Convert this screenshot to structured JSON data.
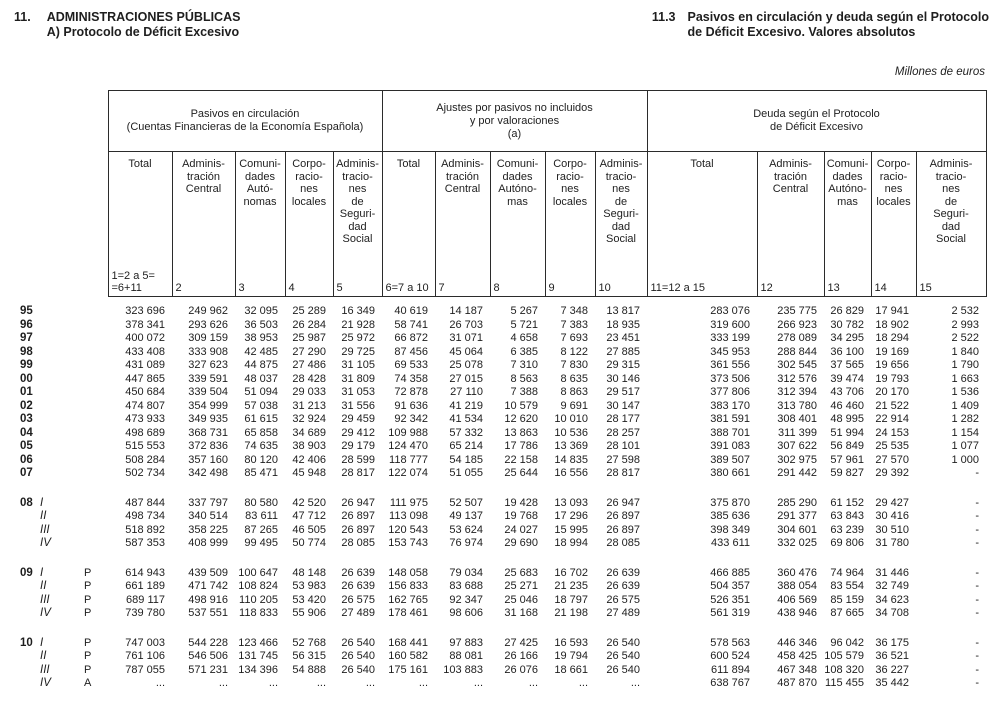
{
  "header": {
    "section_number": "11.",
    "section_title": "ADMINISTRACIONES PÚBLICAS",
    "section_subtitle": "A) Protocolo de Déficit Excesivo",
    "table_number": "11.3",
    "table_title": "Pasivos en circulación y deuda según el Protocolo\nde Déficit Excesivo. Valores absolutos",
    "units_note": "Millones de euros"
  },
  "table": {
    "groups": [
      {
        "title": "Pasivos en circulación\n(Cuentas Financieras de la Economía Española)"
      },
      {
        "title": "Ajustes por pasivos no incluidos\ny por valoraciones\n(a)"
      },
      {
        "title": "Deuda según el Protocolo\nde Déficit Excesivo"
      }
    ],
    "columns": [
      {
        "label": "Total",
        "number": "1=2 a 5=\n=6+11"
      },
      {
        "label": "Adminis-\ntración\nCentral",
        "number": "2"
      },
      {
        "label": "Comuni-\ndades\nAutó-\nnomas",
        "number": "3"
      },
      {
        "label": "Corpo-\nracio-\nnes\nlocales",
        "number": "4"
      },
      {
        "label": "Adminis-\ntracio-\nnes\nde\nSeguri-\ndad\nSocial",
        "number": "5"
      },
      {
        "label": "Total",
        "number": "6=7 a 10"
      },
      {
        "label": "Adminis-\ntración\nCentral",
        "number": "7"
      },
      {
        "label": "Comuni-\ndades\nAutóno-\nmas",
        "number": "8"
      },
      {
        "label": "Corpo-\nracio-\nnes\nlocales",
        "number": "9"
      },
      {
        "label": "Adminis-\ntracio-\nnes\nde\nSeguri-\ndad\nSocial",
        "number": "10"
      },
      {
        "label": "Total",
        "number": "11=12 a 15"
      },
      {
        "label": "Adminis-\ntración\nCentral",
        "number": "12"
      },
      {
        "label": "Comuni-\ndades\nAutóno-\nmas",
        "number": "13"
      },
      {
        "label": "Corpo-\nracio-\nnes\nlocales",
        "number": "14"
      },
      {
        "label": "Adminis-\ntracio-\nnes\nde\nSeguri-\ndad\nSocial",
        "number": "15"
      }
    ],
    "rows": [
      {
        "year": "95",
        "quarter": "",
        "marker": "",
        "gap": false,
        "values": [
          "323 696",
          "249 962",
          "32 095",
          "25 289",
          "16 349",
          "40 619",
          "14 187",
          "5 267",
          "7 348",
          "13 817",
          "283 076",
          "235 775",
          "26 829",
          "17 941",
          "2 532"
        ]
      },
      {
        "year": "96",
        "quarter": "",
        "marker": "",
        "gap": false,
        "values": [
          "378 341",
          "293 626",
          "36 503",
          "26 284",
          "21 928",
          "58 741",
          "26 703",
          "5 721",
          "7 383",
          "18 935",
          "319 600",
          "266 923",
          "30 782",
          "18 902",
          "2 993"
        ]
      },
      {
        "year": "97",
        "quarter": "",
        "marker": "",
        "gap": false,
        "values": [
          "400 072",
          "309 159",
          "38 953",
          "25 987",
          "25 972",
          "66 872",
          "31 071",
          "4 658",
          "7 693",
          "23 451",
          "333 199",
          "278 089",
          "34 295",
          "18 294",
          "2 522"
        ]
      },
      {
        "year": "98",
        "quarter": "",
        "marker": "",
        "gap": false,
        "values": [
          "433 408",
          "333 908",
          "42 485",
          "27 290",
          "29 725",
          "87 456",
          "45 064",
          "6 385",
          "8 122",
          "27 885",
          "345 953",
          "288 844",
          "36 100",
          "19 169",
          "1 840"
        ]
      },
      {
        "year": "99",
        "quarter": "",
        "marker": "",
        "gap": false,
        "values": [
          "431 089",
          "327 623",
          "44 875",
          "27 486",
          "31 105",
          "69 533",
          "25 078",
          "7 310",
          "7 830",
          "29 315",
          "361 556",
          "302 545",
          "37 565",
          "19 656",
          "1 790"
        ]
      },
      {
        "year": "00",
        "quarter": "",
        "marker": "",
        "gap": false,
        "values": [
          "447 865",
          "339 591",
          "48 037",
          "28 428",
          "31 809",
          "74 358",
          "27 015",
          "8 563",
          "8 635",
          "30 146",
          "373 506",
          "312 576",
          "39 474",
          "19 793",
          "1 663"
        ]
      },
      {
        "year": "01",
        "quarter": "",
        "marker": "",
        "gap": false,
        "values": [
          "450 684",
          "339 504",
          "51 094",
          "29 033",
          "31 053",
          "72 878",
          "27 110",
          "7 388",
          "8 863",
          "29 517",
          "377 806",
          "312 394",
          "43 706",
          "20 170",
          "1 536"
        ]
      },
      {
        "year": "02",
        "quarter": "",
        "marker": "",
        "gap": false,
        "values": [
          "474 807",
          "354 999",
          "57 038",
          "31 213",
          "31 556",
          "91 636",
          "41 219",
          "10 579",
          "9 691",
          "30 147",
          "383 170",
          "313 780",
          "46 460",
          "21 522",
          "1 409"
        ]
      },
      {
        "year": "03",
        "quarter": "",
        "marker": "",
        "gap": false,
        "values": [
          "473 933",
          "349 935",
          "61 615",
          "32 924",
          "29 459",
          "92 342",
          "41 534",
          "12 620",
          "10 010",
          "28 177",
          "381 591",
          "308 401",
          "48 995",
          "22 914",
          "1 282"
        ]
      },
      {
        "year": "04",
        "quarter": "",
        "marker": "",
        "gap": false,
        "values": [
          "498 689",
          "368 731",
          "65 858",
          "34 689",
          "29 412",
          "109 988",
          "57 332",
          "13 863",
          "10 536",
          "28 257",
          "388 701",
          "311 399",
          "51 994",
          "24 153",
          "1 154"
        ]
      },
      {
        "year": "05",
        "quarter": "",
        "marker": "",
        "gap": false,
        "values": [
          "515 553",
          "372 836",
          "74 635",
          "38 903",
          "29 179",
          "124 470",
          "65 214",
          "17 786",
          "13 369",
          "28 101",
          "391 083",
          "307 622",
          "56 849",
          "25 535",
          "1 077"
        ]
      },
      {
        "year": "06",
        "quarter": "",
        "marker": "",
        "gap": false,
        "values": [
          "508 284",
          "357 160",
          "80 120",
          "42 406",
          "28 599",
          "118 777",
          "54 185",
          "22 158",
          "14 835",
          "27 598",
          "389 507",
          "302 975",
          "57 961",
          "27 570",
          "1 000"
        ]
      },
      {
        "year": "07",
        "quarter": "",
        "marker": "",
        "gap": false,
        "values": [
          "502 734",
          "342 498",
          "85 471",
          "45 948",
          "28 817",
          "122 074",
          "51 055",
          "25 644",
          "16 556",
          "28 817",
          "380 661",
          "291 442",
          "59 827",
          "29 392",
          "-"
        ]
      },
      {
        "year": "08",
        "quarter": "I",
        "marker": "",
        "gap": true,
        "values": [
          "487 844",
          "337 797",
          "80 580",
          "42 520",
          "26 947",
          "111 975",
          "52 507",
          "19 428",
          "13 093",
          "26 947",
          "375 870",
          "285 290",
          "61 152",
          "29 427",
          "-"
        ]
      },
      {
        "year": "",
        "quarter": "II",
        "marker": "",
        "gap": false,
        "values": [
          "498 734",
          "340 514",
          "83 611",
          "47 712",
          "26 897",
          "113 098",
          "49 137",
          "19 768",
          "17 296",
          "26 897",
          "385 636",
          "291 377",
          "63 843",
          "30 416",
          "-"
        ]
      },
      {
        "year": "",
        "quarter": "III",
        "marker": "",
        "gap": false,
        "values": [
          "518 892",
          "358 225",
          "87 265",
          "46 505",
          "26 897",
          "120 543",
          "53 624",
          "24 027",
          "15 995",
          "26 897",
          "398 349",
          "304 601",
          "63 239",
          "30 510",
          "-"
        ]
      },
      {
        "year": "",
        "quarter": "IV",
        "marker": "",
        "gap": false,
        "values": [
          "587 353",
          "408 999",
          "99 495",
          "50 774",
          "28 085",
          "153 743",
          "76 974",
          "29 690",
          "18 994",
          "28 085",
          "433 611",
          "332 025",
          "69 806",
          "31 780",
          "-"
        ]
      },
      {
        "year": "09",
        "quarter": "I",
        "marker": "P",
        "gap": true,
        "values": [
          "614 943",
          "439 509",
          "100 647",
          "48 148",
          "26 639",
          "148 058",
          "79 034",
          "25 683",
          "16 702",
          "26 639",
          "466 885",
          "360 476",
          "74 964",
          "31 446",
          "-"
        ]
      },
      {
        "year": "",
        "quarter": "II",
        "marker": "P",
        "gap": false,
        "values": [
          "661 189",
          "471 742",
          "108 824",
          "53 983",
          "26 639",
          "156 833",
          "83 688",
          "25 271",
          "21 235",
          "26 639",
          "504 357",
          "388 054",
          "83 554",
          "32 749",
          "-"
        ]
      },
      {
        "year": "",
        "quarter": "III",
        "marker": "P",
        "gap": false,
        "values": [
          "689 117",
          "498 916",
          "110 205",
          "53 420",
          "26 575",
          "162 765",
          "92 347",
          "25 046",
          "18 797",
          "26 575",
          "526 351",
          "406 569",
          "85 159",
          "34 623",
          "-"
        ]
      },
      {
        "year": "",
        "quarter": "IV",
        "marker": "P",
        "gap": false,
        "values": [
          "739 780",
          "537 551",
          "118 833",
          "55 906",
          "27 489",
          "178 461",
          "98 606",
          "31 168",
          "21 198",
          "27 489",
          "561 319",
          "438 946",
          "87 665",
          "34 708",
          "-"
        ]
      },
      {
        "year": "10",
        "quarter": "I",
        "marker": "P",
        "gap": true,
        "values": [
          "747 003",
          "544 228",
          "123 466",
          "52 768",
          "26 540",
          "168 441",
          "97 883",
          "27 425",
          "16 593",
          "26 540",
          "578 563",
          "446 346",
          "96 042",
          "36 175",
          "-"
        ]
      },
      {
        "year": "",
        "quarter": "II",
        "marker": "P",
        "gap": false,
        "values": [
          "761 106",
          "546 506",
          "131 745",
          "56 315",
          "26 540",
          "160 582",
          "88 081",
          "26 166",
          "19 794",
          "26 540",
          "600 524",
          "458 425",
          "105 579",
          "36 521",
          "-"
        ]
      },
      {
        "year": "",
        "quarter": "III",
        "marker": "P",
        "gap": false,
        "values": [
          "787 055",
          "571 231",
          "134 396",
          "54 888",
          "26 540",
          "175 161",
          "103 883",
          "26 076",
          "18 661",
          "26 540",
          "611 894",
          "467 348",
          "108 320",
          "36 227",
          "-"
        ]
      },
      {
        "year": "",
        "quarter": "IV",
        "marker": "A",
        "gap": false,
        "values": [
          "...",
          "...",
          "...",
          "...",
          "...",
          "...",
          "...",
          "...",
          "...",
          "...",
          "638 767",
          "487 870",
          "115 455",
          "35 442",
          "-"
        ]
      }
    ]
  }
}
